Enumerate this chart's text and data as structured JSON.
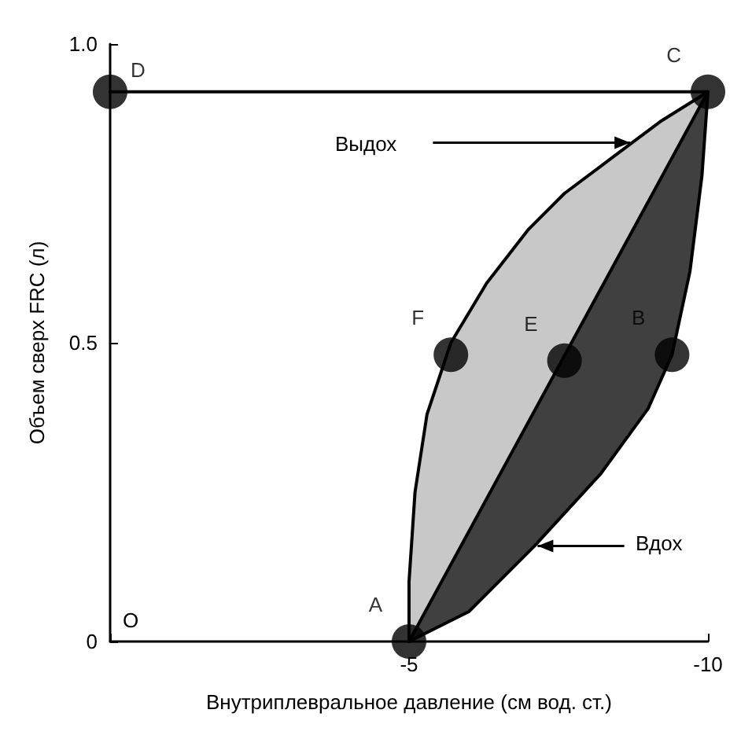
{
  "chart_data": {
    "type": "line",
    "xlabel": "Внутриплевральное давление (см вод. ст.)",
    "ylabel": "Объем сверх FRC (л)",
    "xlim": [
      0,
      -10
    ],
    "ylim": [
      0,
      1.0
    ],
    "xticks": [
      {
        "value": 0,
        "label": null
      },
      -5,
      -10
    ],
    "yticks": [
      0,
      0.5,
      {
        "value": 1,
        "label": "1.0"
      }
    ],
    "grid": false,
    "series": [
      {
        "color": "#000000",
        "marker": "none",
        "line_style": "solid",
        "x": [
          0,
          -10
        ],
        "values": [
          0.92,
          0.92
        ]
      },
      {
        "color": "#000000",
        "marker": "none",
        "line_style": "solid",
        "x": [
          -5,
          -10
        ],
        "values": [
          0,
          0.92
        ]
      },
      {
        "type": "scatter",
        "color": "#000000",
        "marker": "circle",
        "x": [
          -5,
          -9.4,
          -10,
          0,
          -7.6,
          -5.7
        ],
        "values": [
          0,
          0.48,
          0.92,
          0.92,
          0.47,
          0.48
        ]
      }
    ],
    "annotations": [
      {
        "text": "A",
        "x": -5,
        "y": 0
      },
      {
        "text": "B",
        "x": -9.4,
        "y": 0.48
      },
      {
        "text": "C",
        "x": -10,
        "y": 0.92
      },
      {
        "text": "D",
        "x": 0,
        "y": 0.92
      },
      {
        "text": "E",
        "x": -7.6,
        "y": 0.47
      },
      {
        "text": "F",
        "x": -5.7,
        "y": 0.48
      },
      "O",
      "Выдох",
      "Вдох"
    ]
  }
}
